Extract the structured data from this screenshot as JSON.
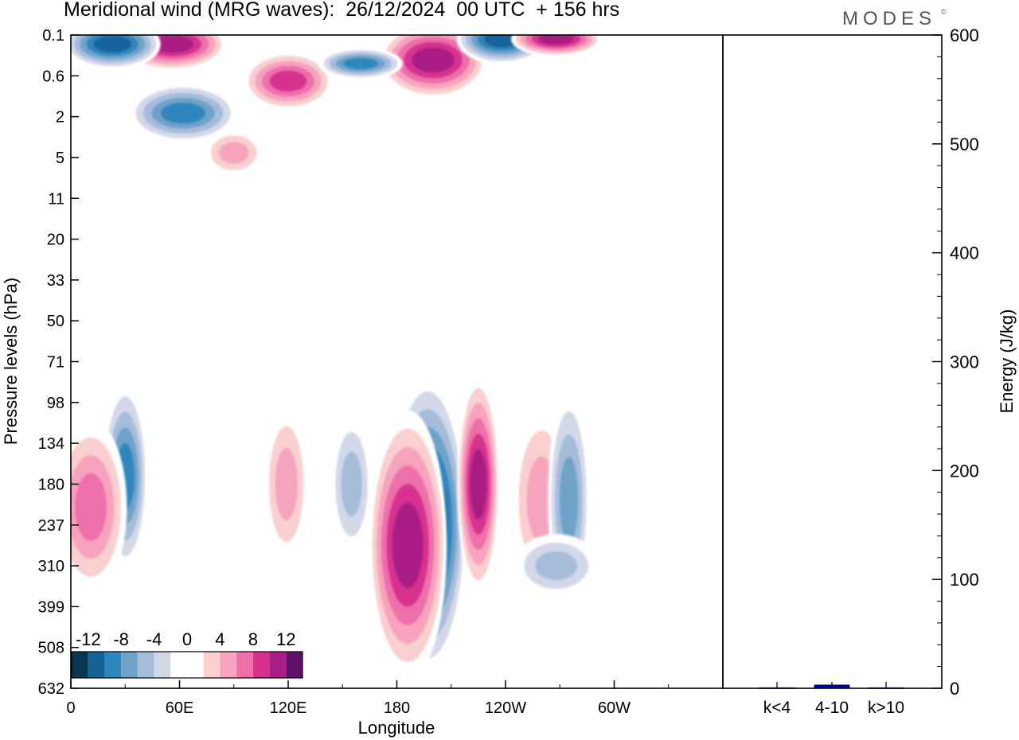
{
  "title": "Meridional wind (MRG waves):  26/12/2024  00 UTC  + 156 hrs",
  "brand": "MODES",
  "brand_mark": "©",
  "chart_data": [
    {
      "type": "heatmap",
      "title": "Meridional wind (MRG waves):  26/12/2024  00 UTC  + 156 hrs",
      "xlabel": "Longitude",
      "ylabel": "Pressure levels (hPa)",
      "x_ticks": [
        "0",
        "60E",
        "120E",
        "180",
        "120W",
        "60W"
      ],
      "y_ticks": [
        "0.1",
        "0.6",
        "2",
        "5",
        "11",
        "20",
        "33",
        "50",
        "71",
        "98",
        "134",
        "180",
        "237",
        "310",
        "399",
        "508",
        "632"
      ],
      "colorbar": {
        "tick_labels": [
          "-12",
          "-8",
          "-4",
          "0",
          "4",
          "8",
          "12"
        ],
        "colors": [
          "#08374f",
          "#15629a",
          "#2f86bd",
          "#6ea2c9",
          "#a5bcdb",
          "#d3d8e9",
          "#ffffff",
          "#ffffff",
          "#f9cfcf",
          "#f7a3bd",
          "#ee70aa",
          "#d6318e",
          "#a81e84",
          "#5e1068"
        ]
      },
      "features": [
        {
          "lon": 197,
          "level": 237,
          "value": -14
        },
        {
          "lon": 186,
          "level": 271,
          "value": 13
        },
        {
          "lon": 225,
          "level": 180,
          "value": 13
        },
        {
          "lon": 30,
          "level": 170,
          "value": -11
        },
        {
          "lon": 11,
          "level": 210,
          "value": 9
        },
        {
          "lon": 155,
          "level": 180,
          "value": -7
        },
        {
          "lon": 119,
          "level": 180,
          "value": 7
        },
        {
          "lon": 260,
          "level": 200,
          "value": 6
        },
        {
          "lon": 275,
          "level": 200,
          "value": -9
        },
        {
          "lon": 268,
          "level": 310,
          "value": -6
        },
        {
          "lon": 56,
          "level": 0.15,
          "value": 12
        },
        {
          "lon": 23,
          "level": 0.15,
          "value": -12
        },
        {
          "lon": 200,
          "level": 0.3,
          "value": 12
        },
        {
          "lon": 238,
          "level": 0.12,
          "value": -12
        },
        {
          "lon": 120,
          "level": 0.7,
          "value": 11
        },
        {
          "lon": 62,
          "level": 1.8,
          "value": -11
        },
        {
          "lon": 160,
          "level": 0.35,
          "value": -10
        },
        {
          "lon": 268,
          "level": 0.12,
          "value": 12
        },
        {
          "lon": 90,
          "level": 4.5,
          "value": 6
        }
      ]
    },
    {
      "type": "bar",
      "ylabel": "Energy (J/kg)",
      "ylim": [
        0,
        600
      ],
      "y_ticks": [
        "0",
        "100",
        "200",
        "300",
        "400",
        "500",
        "600"
      ],
      "categories": [
        "k<4",
        "4-10",
        "k>10"
      ],
      "values": [
        0.5,
        3,
        0.5
      ],
      "bar_color": "#0000cc"
    }
  ]
}
